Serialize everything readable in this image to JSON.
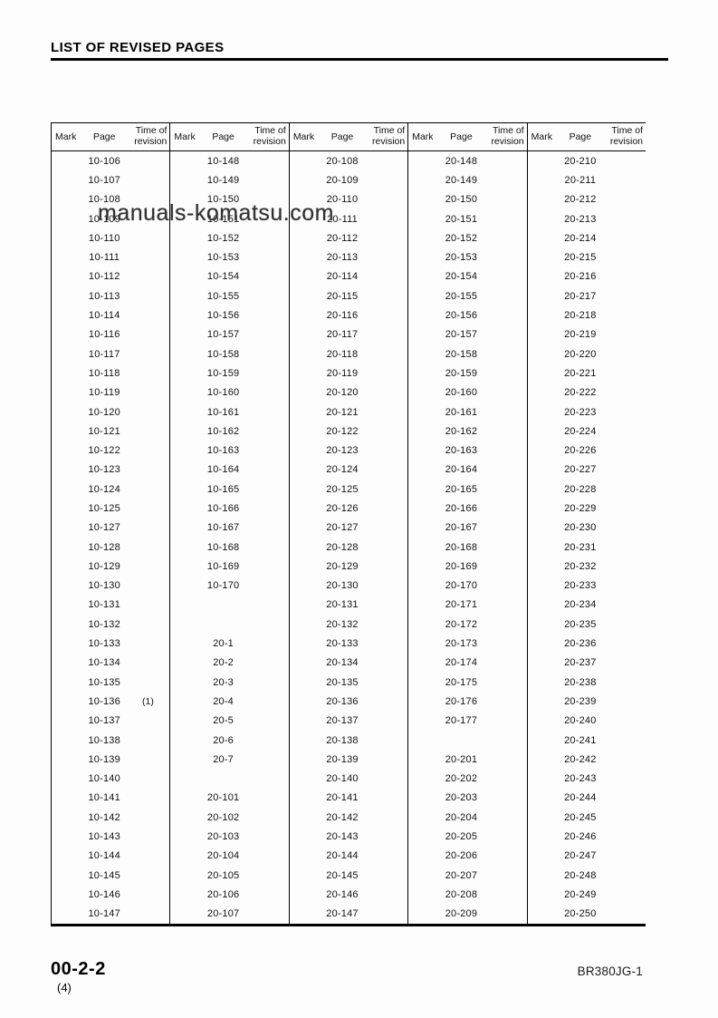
{
  "page_title": "LIST OF REVISED PAGES",
  "watermark": "manuals-komatsu.com",
  "footer": {
    "page_number": "00-2-2",
    "revision_count": "(4)",
    "model_code": "BR380JG-1"
  },
  "table": {
    "column_headers": {
      "mark": "Mark",
      "page": "Page",
      "time_of_revision": "Time of revision"
    },
    "revisions": {
      "10-136": "(1)"
    },
    "groups": [
      {
        "pages": [
          "10-106",
          "10-107",
          "10-108",
          "10-109",
          "10-110",
          "10-111",
          "10-112",
          "10-113",
          "10-114",
          "10-116",
          "10-117",
          "10-118",
          "10-119",
          "10-120",
          "10-121",
          "10-122",
          "10-123",
          "10-124",
          "10-125",
          "10-127",
          "10-128",
          "10-129",
          "10-130",
          "10-131",
          "10-132",
          "10-133",
          "10-134",
          "10-135",
          "10-136",
          "10-137",
          "10-138",
          "10-139",
          "10-140",
          "10-141",
          "10-142",
          "10-143",
          "10-144",
          "10-145",
          "10-146",
          "10-147"
        ]
      },
      {
        "pages": [
          "10-148",
          "10-149",
          "10-150",
          "10-151",
          "10-152",
          "10-153",
          "10-154",
          "10-155",
          "10-156",
          "10-157",
          "10-158",
          "10-159",
          "10-160",
          "10-161",
          "10-162",
          "10-163",
          "10-164",
          "10-165",
          "10-166",
          "10-167",
          "10-168",
          "10-169",
          "10-170",
          "",
          "",
          "20-1",
          "20-2",
          "20-3",
          "20-4",
          "20-5",
          "20-6",
          "20-7",
          "",
          "20-101",
          "20-102",
          "20-103",
          "20-104",
          "20-105",
          "20-106",
          "20-107"
        ]
      },
      {
        "pages": [
          "20-108",
          "20-109",
          "20-110",
          "20-111",
          "20-112",
          "20-113",
          "20-114",
          "20-115",
          "20-116",
          "20-117",
          "20-118",
          "20-119",
          "20-120",
          "20-121",
          "20-122",
          "20-123",
          "20-124",
          "20-125",
          "20-126",
          "20-127",
          "20-128",
          "20-129",
          "20-130",
          "20-131",
          "20-132",
          "20-133",
          "20-134",
          "20-135",
          "20-136",
          "20-137",
          "20-138",
          "20-139",
          "20-140",
          "20-141",
          "20-142",
          "20-143",
          "20-144",
          "20-145",
          "20-146",
          "20-147"
        ]
      },
      {
        "pages": [
          "20-148",
          "20-149",
          "20-150",
          "20-151",
          "20-152",
          "20-153",
          "20-154",
          "20-155",
          "20-156",
          "20-157",
          "20-158",
          "20-159",
          "20-160",
          "20-161",
          "20-162",
          "20-163",
          "20-164",
          "20-165",
          "20-166",
          "20-167",
          "20-168",
          "20-169",
          "20-170",
          "20-171",
          "20-172",
          "20-173",
          "20-174",
          "20-175",
          "20-176",
          "20-177",
          "",
          "20-201",
          "20-202",
          "20-203",
          "20-204",
          "20-205",
          "20-206",
          "20-207",
          "20-208",
          "20-209"
        ]
      },
      {
        "pages": [
          "20-210",
          "20-211",
          "20-212",
          "20-213",
          "20-214",
          "20-215",
          "20-216",
          "20-217",
          "20-218",
          "20-219",
          "20-220",
          "20-221",
          "20-222",
          "20-223",
          "20-224",
          "20-226",
          "20-227",
          "20-228",
          "20-229",
          "20-230",
          "20-231",
          "20-232",
          "20-233",
          "20-234",
          "20-235",
          "20-236",
          "20-237",
          "20-238",
          "20-239",
          "20-240",
          "20-241",
          "20-242",
          "20-243",
          "20-244",
          "20-245",
          "20-246",
          "20-247",
          "20-248",
          "20-249",
          "20-250"
        ]
      }
    ]
  }
}
